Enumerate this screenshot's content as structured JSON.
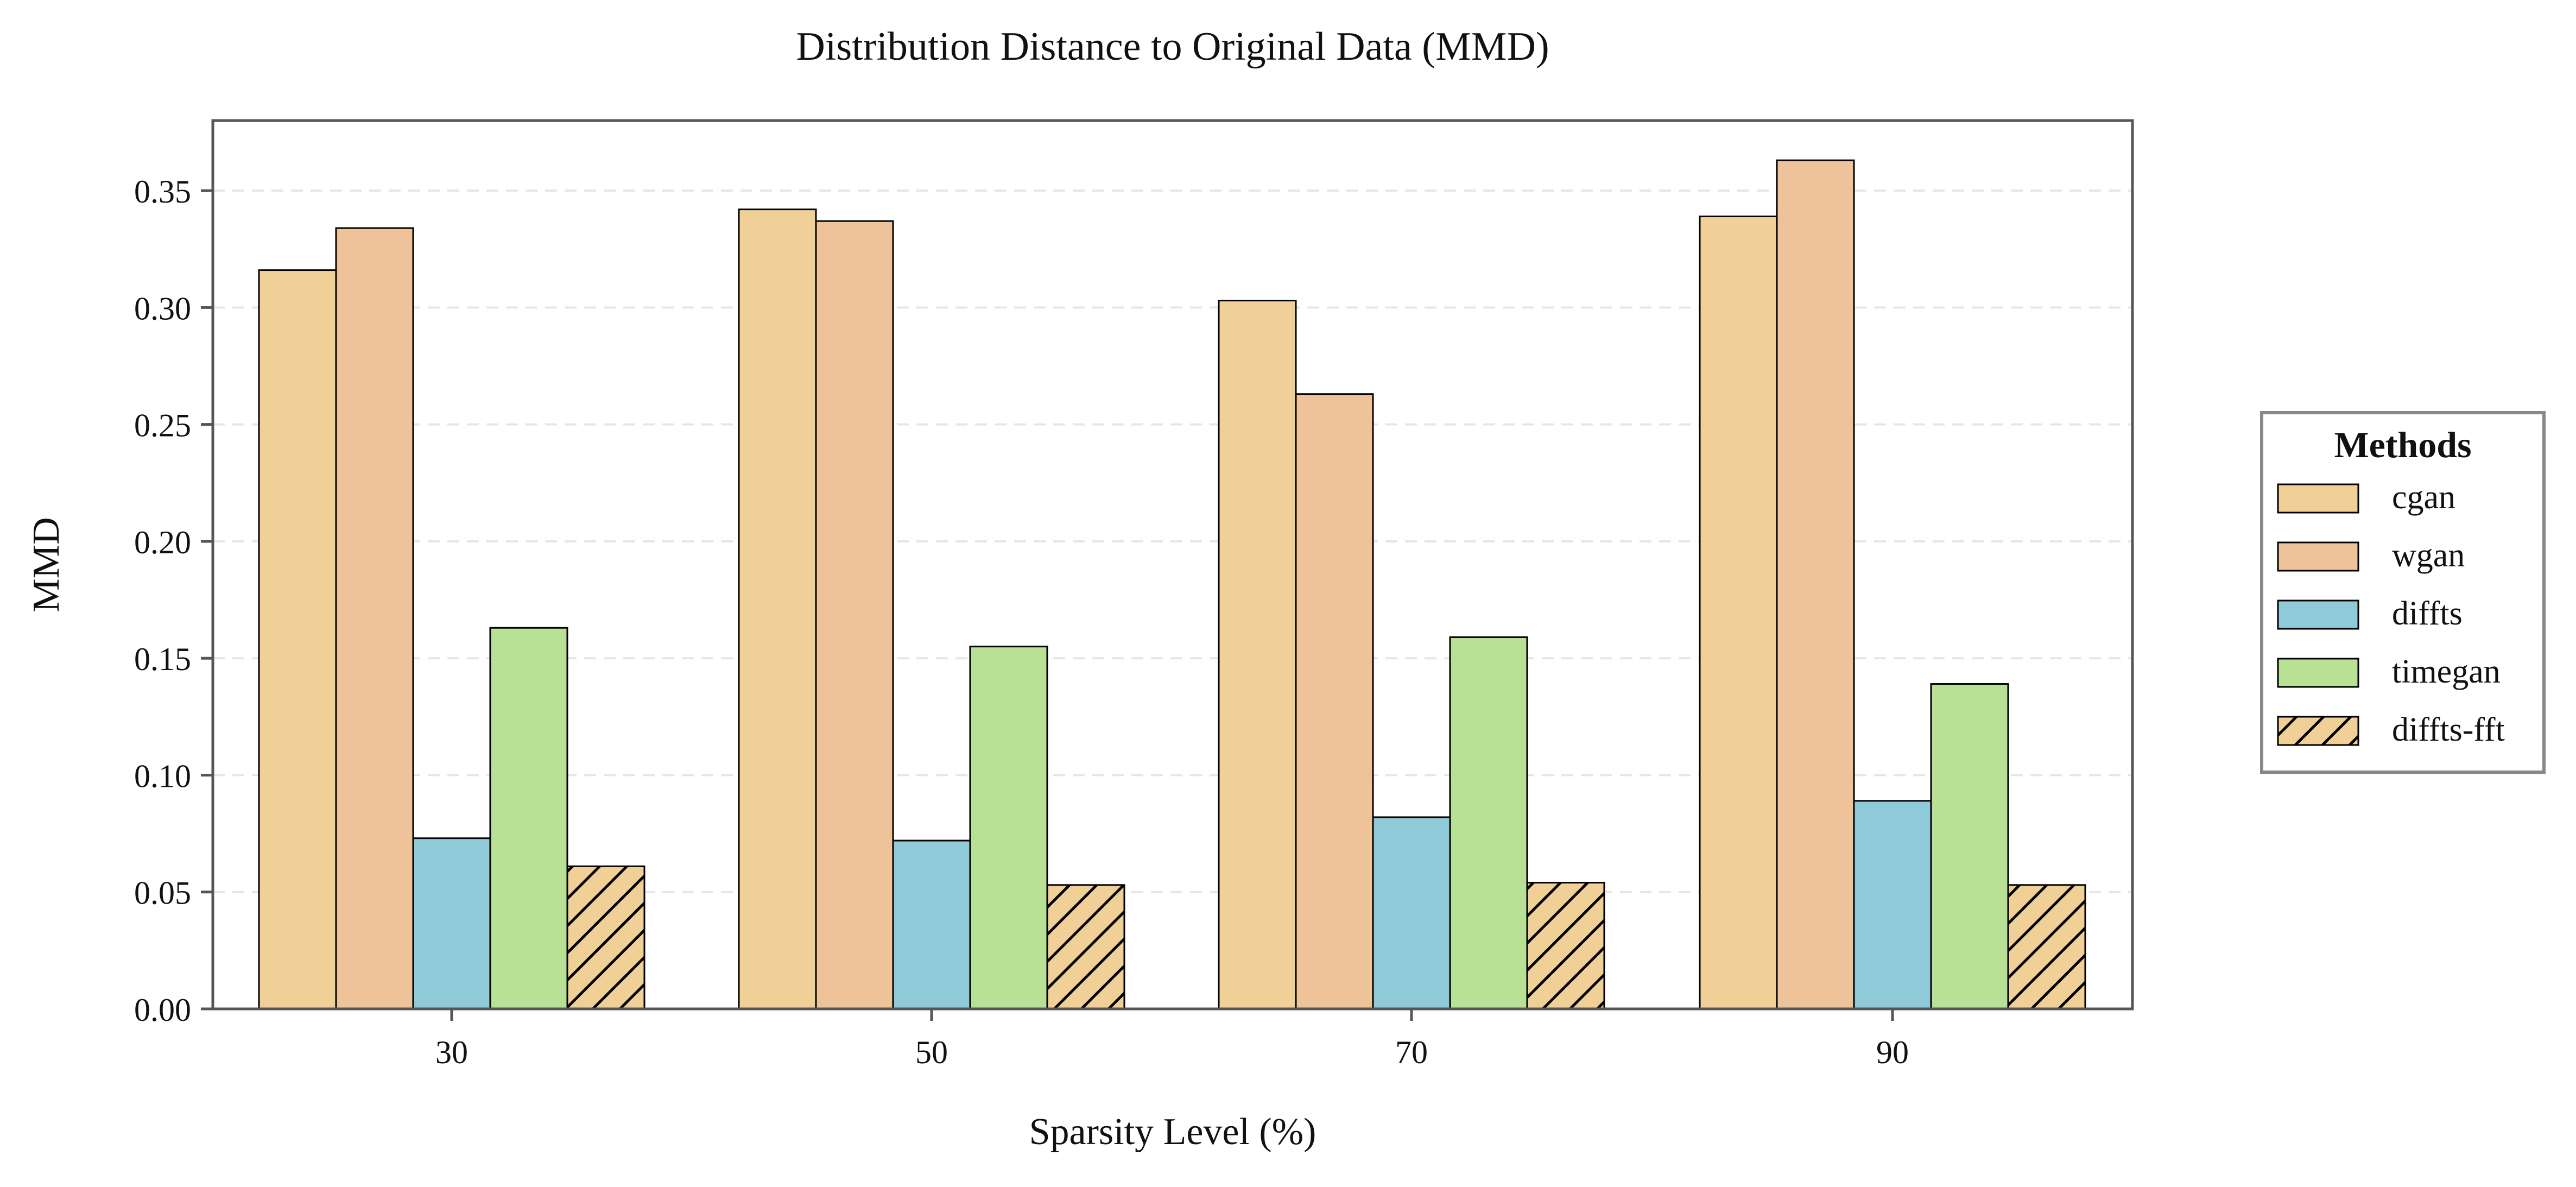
{
  "chart_data": {
    "type": "bar",
    "title": "Distribution Distance to Original Data (MMD)",
    "xlabel": "Sparsity Level (%)",
    "ylabel": "MMD",
    "categories": [
      "30",
      "50",
      "70",
      "90"
    ],
    "ylim": [
      0,
      0.38
    ],
    "yticks": [
      "0.00",
      "0.05",
      "0.10",
      "0.15",
      "0.20",
      "0.25",
      "0.30",
      "0.35"
    ],
    "grid": true,
    "legend": {
      "title": "Methods",
      "placement": "right"
    },
    "series": [
      {
        "name": "cgan",
        "color": "#F0D096",
        "hatch": false,
        "values": [
          0.316,
          0.342,
          0.303,
          0.339
        ]
      },
      {
        "name": "wgan",
        "color": "#EFC39A",
        "hatch": false,
        "values": [
          0.334,
          0.337,
          0.263,
          0.363
        ]
      },
      {
        "name": "diffts",
        "color": "#8ECAD8",
        "hatch": false,
        "values": [
          0.073,
          0.072,
          0.082,
          0.089
        ]
      },
      {
        "name": "timegan",
        "color": "#B8E196",
        "hatch": false,
        "values": [
          0.163,
          0.155,
          0.159,
          0.139
        ]
      },
      {
        "name": "diffts-fft",
        "color": "#F0D096",
        "hatch": true,
        "values": [
          0.061,
          0.053,
          0.054,
          0.053
        ]
      }
    ]
  }
}
